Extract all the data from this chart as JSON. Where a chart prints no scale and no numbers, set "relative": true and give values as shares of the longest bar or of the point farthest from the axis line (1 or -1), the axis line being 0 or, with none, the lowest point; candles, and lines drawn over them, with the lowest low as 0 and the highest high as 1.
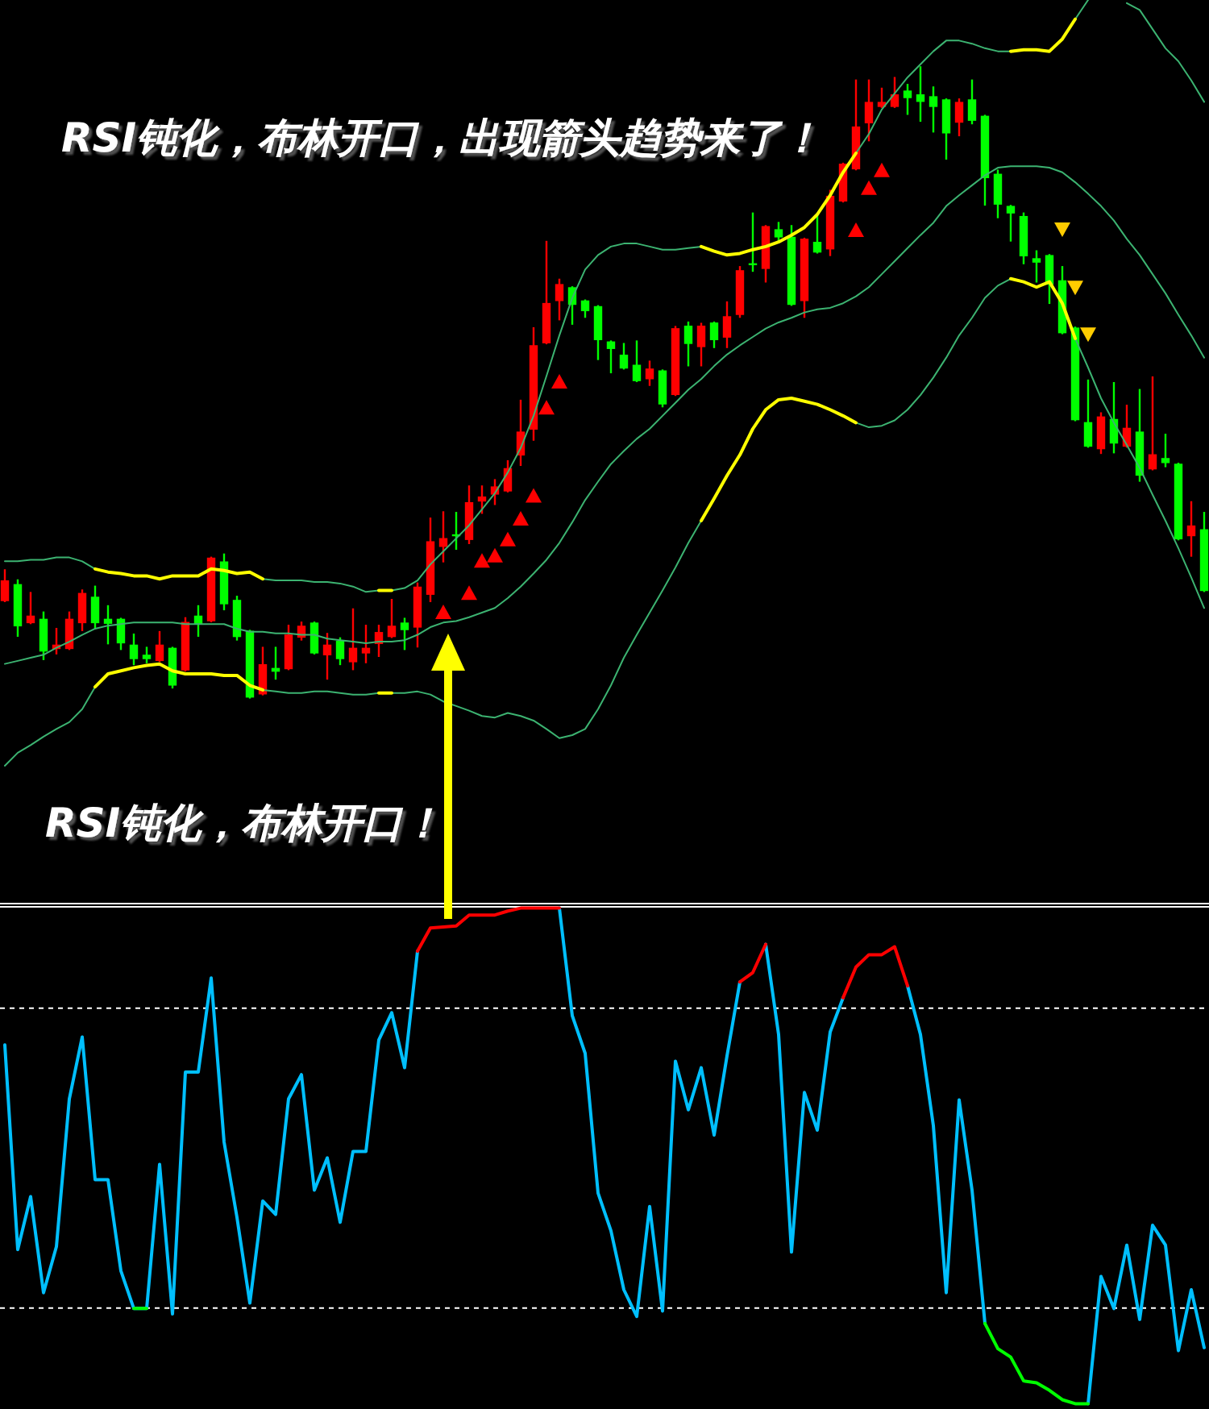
{
  "chart_data": [
    {
      "type": "candlestick",
      "relative": true,
      "categories": [
        null,
        null,
        null,
        null,
        null,
        null,
        null,
        null,
        null,
        null,
        null,
        null,
        null,
        null,
        null,
        null,
        null,
        null,
        null,
        null,
        null,
        null,
        null,
        null,
        null,
        null,
        null,
        null,
        null,
        null,
        null,
        null,
        null,
        null,
        null,
        null,
        null,
        null,
        null,
        null,
        null,
        null,
        null,
        null,
        null,
        null,
        null,
        null,
        null,
        null,
        null,
        null,
        null,
        null,
        null,
        null,
        null,
        null,
        null,
        null,
        null,
        null,
        null,
        null,
        null,
        null,
        null,
        null,
        null,
        null,
        null,
        null,
        null,
        null,
        null,
        null,
        null,
        null,
        null,
        null,
        null,
        null,
        null,
        null,
        null,
        null,
        null,
        null,
        null,
        null,
        null,
        null,
        null,
        null
      ],
      "ohlc": [
        [
          0.153,
          0.202,
          0.153,
          0.186
        ],
        [
          0.18,
          0.186,
          0.098,
          0.113
        ],
        [
          0.118,
          0.166,
          0.118,
          0.13
        ],
        [
          0.125,
          0.135,
          0.061,
          0.073
        ],
        [
          0.077,
          0.109,
          0.07,
          0.084
        ],
        [
          0.077,
          0.135,
          0.077,
          0.125
        ],
        [
          0.118,
          0.17,
          0.107,
          0.166
        ],
        [
          0.16,
          0.176,
          0.111,
          0.118
        ],
        [
          0.125,
          0.145,
          0.086,
          0.117
        ],
        [
          0.125,
          0.125,
          0.077,
          0.086
        ],
        [
          0.084,
          0.1,
          0.053,
          0.061
        ],
        [
          0.068,
          0.079,
          0.056,
          0.061
        ],
        [
          0.058,
          0.104,
          0.058,
          0.084
        ],
        [
          0.079,
          0.079,
          0.016,
          0.019
        ],
        [
          0.043,
          0.126,
          0.043,
          0.12
        ],
        [
          0.13,
          0.145,
          0.098,
          0.117
        ],
        [
          0.121,
          0.222,
          0.121,
          0.222
        ],
        [
          0.216,
          0.227,
          0.14,
          0.148
        ],
        [
          0.155,
          0.16,
          0.092,
          0.096
        ],
        [
          0.106,
          0.106,
          0,
          0
        ],
        [
          0.005,
          0.079,
          0.005,
          0.053
        ],
        [
          0.047,
          0.079,
          0.03,
          0.041
        ],
        [
          0.045,
          0.114,
          0.045,
          0.1
        ],
        [
          0.095,
          0.119,
          0.092,
          0.114
        ],
        [
          0.119,
          0.119,
          0.07,
          0.07
        ],
        [
          0.067,
          0.101,
          0.03,
          0.084
        ],
        [
          0.09,
          0.094,
          0.053,
          0.061
        ],
        [
          0.056,
          0.14,
          0.045,
          0.079
        ],
        [
          0.07,
          0.114,
          0.056,
          0.079
        ],
        [
          0.085,
          0.114,
          0.066,
          0.104
        ],
        [
          0.096,
          0.155,
          0.096,
          0.114
        ],
        [
          0.119,
          0.125,
          0.077,
          0.107
        ],
        [
          0.111,
          0.181,
          0.081,
          0.176
        ],
        [
          0.163,
          0.284,
          0.153,
          0.248
        ],
        [
          0.239,
          0.294,
          0.216,
          0.253
        ],
        [
          0.259,
          0.293,
          0.236,
          0.256
        ],
        [
          0.25,
          0.335,
          0.245,
          0.31
        ],
        [
          0.311,
          0.335,
          0.293,
          0.319
        ],
        [
          0.322,
          0.345,
          0.307,
          0.335
        ],
        [
          0.327,
          0.375,
          0.327,
          0.364
        ],
        [
          0.384,
          0.471,
          0.369,
          0.422
        ],
        [
          0.425,
          0.586,
          0.409,
          0.559
        ],
        [
          0.562,
          0.723,
          0.562,
          0.626
        ],
        [
          0.629,
          0.663,
          0.6,
          0.656
        ],
        [
          0.651,
          0.651,
          0.593,
          0.623
        ],
        [
          0.63,
          0.63,
          0.604,
          0.613
        ],
        [
          0.621,
          0.621,
          0.537,
          0.567
        ],
        [
          0.565,
          0.565,
          0.516,
          0.553
        ],
        [
          0.544,
          0.561,
          0.522,
          0.522
        ],
        [
          0.528,
          0.565,
          0.502,
          0.502
        ],
        [
          0.505,
          0.533,
          0.496,
          0.522
        ],
        [
          0.519,
          0.519,
          0.462,
          0.465
        ],
        [
          0.48,
          0.588,
          0.48,
          0.586
        ],
        [
          0.59,
          0.595,
          0.527,
          0.561
        ],
        [
          0.556,
          0.593,
          0.527,
          0.59
        ],
        [
          0.595,
          0.595,
          0.556,
          0.567
        ],
        [
          0.571,
          0.627,
          0.556,
          0.605
        ],
        [
          0.607,
          0.683,
          0.604,
          0.678
        ],
        [
          0.689,
          0.768,
          0.677,
          0.686
        ],
        [
          0.68,
          0.748,
          0.66,
          0.748
        ],
        [
          0.743,
          0.753,
          0.723,
          0.73
        ],
        [
          0.731,
          0.748,
          0.623,
          0.623
        ],
        [
          0.629,
          0.728,
          0.604,
          0.728
        ],
        [
          0.723,
          0.765,
          0.706,
          0.706
        ],
        [
          0.711,
          0.804,
          0.702,
          0.796
        ],
        [
          0.787,
          0.847,
          0.787,
          0.847
        ],
        [
          0.838,
          0.979,
          0.838,
          0.906
        ],
        [
          0.911,
          0.979,
          0.884,
          0.945
        ],
        [
          0.937,
          0.966,
          0.937,
          0.945
        ],
        [
          0.937,
          0.983,
          0.937,
          0.957
        ],
        [
          0.963,
          0.972,
          0.926,
          0.951
        ],
        [
          0.957,
          1,
          0.915,
          0.945
        ],
        [
          0.954,
          0.968,
          0.898,
          0.937
        ],
        [
          0.949,
          0.949,
          0.855,
          0.895
        ],
        [
          0.912,
          0.949,
          0.892,
          0.945
        ],
        [
          0.949,
          0.979,
          0.911,
          0.915
        ],
        [
          0.923,
          0.923,
          0.782,
          0.824
        ],
        [
          0.831,
          0.836,
          0.762,
          0.782
        ],
        [
          0.78,
          0.78,
          0.725,
          0.768
        ],
        [
          0.764,
          0.768,
          0.689,
          0.7
        ],
        [
          0.697,
          0.708,
          0.66,
          0.69
        ],
        [
          0.702,
          0.702,
          0.626,
          0.655
        ],
        [
          0.662,
          0.683,
          0.578,
          0.578
        ],
        [
          0.587,
          0.587,
          0.44,
          0.44
        ],
        [
          0.437,
          0.503,
          0.398,
          0.398
        ],
        [
          0.394,
          0.451,
          0.388,
          0.446
        ],
        [
          0.442,
          0.499,
          0.389,
          0.403
        ],
        [
          0.398,
          0.463,
          0.398,
          0.428
        ],
        [
          0.422,
          0.488,
          0.344,
          0.352
        ],
        [
          0.362,
          0.508,
          0.362,
          0.386
        ],
        [
          0.38,
          0.417,
          0.367,
          0.372
        ],
        [
          0.371,
          0.371,
          0.251,
          0.251
        ],
        [
          0.256,
          0.31,
          0.225,
          0.273
        ],
        [
          0.267,
          0.293,
          0.169,
          0.169
        ]
      ],
      "colors": [
        "#ff0000",
        "#00ff00",
        "#ff0000",
        "#00ff00",
        "#ff0000",
        "#ff0000",
        "#ff0000",
        "#00ff00",
        "#00ff00",
        "#00ff00",
        "#00ff00",
        "#00ff00",
        "#ff0000",
        "#00ff00",
        "#ff0000",
        "#00ff00",
        "#ff0000",
        "#00ff00",
        "#00ff00",
        "#00ff00",
        "#ff0000",
        "#00ff00",
        "#ff0000",
        "#ff0000",
        "#00ff00",
        "#ff0000",
        "#00ff00",
        "#ff0000",
        "#ff0000",
        "#ff0000",
        "#ff0000",
        "#00ff00",
        "#ff0000",
        "#ff0000",
        "#ff0000",
        "#00ff00",
        "#ff0000",
        "#ff0000",
        "#ff0000",
        "#ff0000",
        "#ff0000",
        "#ff0000",
        "#ff0000",
        "#ff0000",
        "#00ff00",
        "#00ff00",
        "#00ff00",
        "#00ff00",
        "#00ff00",
        "#00ff00",
        "#ff0000",
        "#00ff00",
        "#ff0000",
        "#00ff00",
        "#ff0000",
        "#00ff00",
        "#ff0000",
        "#ff0000",
        "#00ff00",
        "#ff0000",
        "#00ff00",
        "#00ff00",
        "#ff0000",
        "#00ff00",
        "#ff0000",
        "#ff0000",
        "#ff0000",
        "#ff0000",
        "#ff0000",
        "#ff0000",
        "#00ff00",
        "#00ff00",
        "#00ff00",
        "#00ff00",
        "#ff0000",
        "#00ff00",
        "#00ff00",
        "#00ff00",
        "#00ff00",
        "#00ff00",
        "#00ff00",
        "#00ff00",
        "#00ff00",
        "#00ff00",
        "#00ff00",
        "#ff0000",
        "#00ff00",
        "#ff0000",
        "#00ff00",
        "#ff0000",
        "#00ff00",
        "#00ff00",
        "#ff0000",
        "#00ff00"
      ],
      "annotations": [
        "RSI钝化，布林开口，出现箭头趋势来了！",
        "RSI钝化，布林开口！"
      ]
    },
    {
      "type": "line",
      "relative": true,
      "categories": [
        null,
        null,
        null,
        null,
        null,
        null,
        null,
        null,
        null,
        null,
        null,
        null,
        null,
        null,
        null,
        null,
        null,
        null,
        null,
        null,
        null,
        null,
        null,
        null,
        null,
        null,
        null,
        null,
        null,
        null,
        null,
        null,
        null,
        null,
        null,
        null,
        null,
        null,
        null,
        null,
        null,
        null,
        null,
        null,
        null,
        null,
        null,
        null,
        null,
        null,
        null,
        null,
        null,
        null,
        null,
        null,
        null,
        null,
        null,
        null,
        null,
        null,
        null,
        null,
        null,
        null,
        null,
        null,
        null,
        null,
        null,
        null,
        null,
        null,
        null,
        null,
        null,
        null,
        null,
        null,
        null,
        null,
        null,
        null,
        null,
        null,
        null,
        null,
        null,
        null,
        null,
        null,
        null,
        null
      ],
      "series": [
        {
          "type": "line",
          "color": "#3cb371",
          "values": [
            0.267,
            0.267,
            0.269,
            0.269,
            0.272,
            0.272,
            0.267,
            0.257,
            null,
            null,
            null,
            null,
            null,
            null,
            null,
            null,
            null,
            null,
            null,
            null,
            0.244,
            0.242,
            0.242,
            0.242,
            0.24,
            0.24,
            0.238,
            0.234,
            0.227,
            0.229,
            0.229,
            0.232,
            0.242,
            0.263,
            0.28,
            0.297,
            0.314,
            0.335,
            0.356,
            0.383,
            0.415,
            0.457,
            0.509,
            0.562,
            0.611,
            0.648,
            0.667,
            0.678,
            0.682,
            0.682,
            0.678,
            0.674,
            0.674,
            0.676,
            0.678,
            null,
            null,
            null,
            null,
            null,
            null,
            null,
            null,
            null,
            null,
            null,
            0.8,
            0.825,
            0.857,
            0.878,
            0.899,
            0.916,
            0.933,
            0.947,
            0.947,
            0.943,
            0.937,
            0.933,
            0.933,
            null,
            null,
            null,
            null,
            0.975,
            1,
            null,
            null,
            0.996,
            0.987,
            0.962,
            0.937,
            0.92,
            0.895,
            0.867
          ]
        },
        {
          "type": "line",
          "color": "#ffff00",
          "values": [
            null,
            null,
            null,
            null,
            null,
            null,
            null,
            0.257,
            0.253,
            0.251,
            0.248,
            0.248,
            0.244,
            0.248,
            0.248,
            0.248,
            0.257,
            0.255,
            0.251,
            0.253,
            0.244,
            null,
            null,
            null,
            null,
            null,
            null,
            null,
            null,
            0.229,
            0.229,
            null,
            null,
            null,
            null,
            null,
            null,
            null,
            null,
            null,
            null,
            null,
            null,
            null,
            null,
            null,
            null,
            null,
            null,
            null,
            null,
            null,
            null,
            null,
            0.678,
            0.672,
            0.667,
            0.669,
            0.674,
            0.678,
            0.684,
            0.693,
            0.703,
            0.72,
            0.745,
            0.775,
            0.8,
            null,
            null,
            null,
            null,
            null,
            null,
            null,
            null,
            null,
            null,
            null,
            0.933,
            0.935,
            0.935,
            0.933,
            0.949,
            0.975,
            null,
            null,
            null,
            null,
            null,
            null,
            null,
            null,
            null,
            null
          ]
        },
        {
          "type": "line",
          "color": "#3cb371",
          "values": [
            0.133,
            0.137,
            0.141,
            0.145,
            0.154,
            0.162,
            0.171,
            0.179,
            0.183,
            0.185,
            0.187,
            0.187,
            0.187,
            0.187,
            0.185,
            0.185,
            0.185,
            0.185,
            0.179,
            0.175,
            0.175,
            0.173,
            0.173,
            0.171,
            0.171,
            0.166,
            0.164,
            0.162,
            0.16,
            0.162,
            0.162,
            0.164,
            0.171,
            0.181,
            0.187,
            0.189,
            0.194,
            0.2,
            0.206,
            0.219,
            0.234,
            0.251,
            0.269,
            0.291,
            0.318,
            0.347,
            0.371,
            0.394,
            0.411,
            0.427,
            0.44,
            0.457,
            0.474,
            0.491,
            0.505,
            0.522,
            0.537,
            0.549,
            0.56,
            0.571,
            0.579,
            0.585,
            0.592,
            0.596,
            0.598,
            0.604,
            0.613,
            0.625,
            0.642,
            0.659,
            0.676,
            0.693,
            0.709,
            0.731,
            0.745,
            0.758,
            0.771,
            0.781,
            0.783,
            0.783,
            0.783,
            0.781,
            0.775,
            0.762,
            0.747,
            0.731,
            0.712,
            0.688,
            0.667,
            0.642,
            0.617,
            0.589,
            0.562,
            0.533
          ]
        },
        {
          "type": "line",
          "color": "#3cb371",
          "values": [
            0,
            0.017,
            0.027,
            0.038,
            0.048,
            0.057,
            0.074,
            0.103,
            null,
            null,
            null,
            null,
            null,
            null,
            null,
            null,
            null,
            null,
            null,
            null,
            0.099,
            0.097,
            0.095,
            0.095,
            0.097,
            0.097,
            0.095,
            0.093,
            0.093,
            0.095,
            0.095,
            0.095,
            0.097,
            0.093,
            0.084,
            0.078,
            0.072,
            0.065,
            0.063,
            0.069,
            0.065,
            0.059,
            0.048,
            0.036,
            0.04,
            0.048,
            0.074,
            0.105,
            0.141,
            0.171,
            0.2,
            0.229,
            0.259,
            0.291,
            0.32,
            null,
            null,
            null,
            null,
            null,
            null,
            null,
            null,
            null,
            null,
            null,
            0.448,
            0.442,
            0.444,
            0.451,
            0.465,
            0.484,
            0.507,
            0.533,
            0.562,
            0.585,
            0.611,
            0.627,
            0.636,
            null,
            null,
            null,
            null,
            0.558,
            0.52,
            0.48,
            0.448,
            0.419,
            0.389,
            0.354,
            0.32,
            0.284,
            0.246,
            0.206
          ]
        },
        {
          "type": "line",
          "color": "#ffff00",
          "values": [
            null,
            null,
            null,
            null,
            null,
            null,
            null,
            0.103,
            0.12,
            0.124,
            0.128,
            0.131,
            0.133,
            0.124,
            0.12,
            0.12,
            0.12,
            0.118,
            0.118,
            0.105,
            0.099,
            null,
            null,
            null,
            null,
            null,
            null,
            null,
            null,
            0.095,
            0.095,
            null,
            null,
            null,
            null,
            null,
            null,
            null,
            null,
            null,
            null,
            null,
            null,
            null,
            null,
            null,
            null,
            null,
            null,
            null,
            null,
            null,
            null,
            null,
            0.32,
            0.349,
            0.379,
            0.406,
            0.44,
            0.465,
            0.478,
            0.48,
            0.476,
            0.472,
            0.465,
            0.457,
            0.448,
            null,
            null,
            null,
            null,
            null,
            null,
            null,
            null,
            null,
            null,
            null,
            0.636,
            0.632,
            0.625,
            0.632,
            0.604,
            0.558,
            null,
            null,
            null,
            null,
            null,
            null,
            null,
            null,
            null,
            null
          ]
        },
        {
          "type": "scatter",
          "marker": "triangle",
          "color": "#ff0000",
          "values": [
            null,
            null,
            null,
            null,
            null,
            null,
            null,
            null,
            null,
            null,
            null,
            null,
            null,
            null,
            null,
            null,
            null,
            null,
            null,
            null,
            null,
            null,
            null,
            null,
            null,
            null,
            null,
            null,
            null,
            null,
            null,
            null,
            null,
            null,
            0.2,
            null,
            0.225,
            0.267,
            0.274,
            0.295,
            0.322,
            0.352,
            0.467,
            0.501,
            null,
            null,
            null,
            null,
            null,
            null,
            null,
            null,
            null,
            null,
            null,
            null,
            null,
            null,
            null,
            null,
            null,
            null,
            null,
            null,
            null,
            null,
            0.699,
            0.754,
            0.777,
            null,
            null,
            null,
            null,
            null,
            null,
            null,
            null,
            null,
            null,
            null,
            null,
            null,
            null,
            null,
            null,
            null,
            null,
            null,
            null,
            null,
            null,
            null,
            null,
            null
          ]
        },
        {
          "type": "scatter",
          "marker": "triangle",
          "color": "#ffcc00",
          "values": [
            null,
            null,
            null,
            null,
            null,
            null,
            null,
            null,
            null,
            null,
            null,
            null,
            null,
            null,
            null,
            null,
            null,
            null,
            null,
            null,
            null,
            null,
            null,
            null,
            null,
            null,
            null,
            null,
            null,
            null,
            null,
            null,
            null,
            null,
            null,
            null,
            null,
            null,
            null,
            null,
            null,
            null,
            null,
            null,
            null,
            null,
            null,
            null,
            null,
            null,
            null,
            null,
            null,
            null,
            null,
            null,
            null,
            null,
            null,
            null,
            null,
            null,
            null,
            null,
            null,
            null,
            null,
            null,
            null,
            null,
            null,
            null,
            null,
            null,
            null,
            null,
            null,
            null,
            null,
            null,
            null,
            null,
            0.701,
            0.625,
            0.564,
            null,
            null,
            null,
            null,
            null,
            null,
            null,
            null,
            null
          ]
        }
      ]
    },
    {
      "type": "line",
      "relative": true,
      "categories": [
        null,
        null,
        null,
        null,
        null,
        null,
        null,
        null,
        null,
        null,
        null,
        null,
        null,
        null,
        null,
        null,
        null,
        null,
        null,
        null,
        null,
        null,
        null,
        null,
        null,
        null,
        null,
        null,
        null,
        null,
        null,
        null,
        null,
        null,
        null,
        null,
        null,
        null,
        null,
        null,
        null,
        null,
        null,
        null,
        null,
        null,
        null,
        null,
        null,
        null,
        null,
        null,
        null,
        null,
        null,
        null,
        null,
        null,
        null,
        null,
        null,
        null,
        null,
        null,
        null,
        null,
        null,
        null,
        null,
        null,
        null,
        null,
        null,
        null,
        null,
        null,
        null,
        null,
        null,
        null,
        null,
        null,
        null,
        null,
        null,
        null,
        null,
        null,
        null,
        null,
        null,
        null,
        null,
        null
      ],
      "series": [
        {
          "color": "#00bfff",
          "values": [
            0.724,
            0.311,
            0.418,
            0.224,
            0.317,
            0.615,
            0.74,
            0.452,
            0.452,
            0.268,
            0.192,
            0.192,
            0.483,
            0.181,
            0.669,
            0.669,
            0.859,
            0.528,
            0.376,
            0.203,
            0.409,
            0.382,
            0.615,
            0.664,
            0.431,
            0.496,
            0.366,
            0.509,
            0.509,
            0.734,
            0.789,
            0.678,
            0.913,
            null,
            null,
            null,
            null,
            null,
            null,
            null,
            null,
            null,
            null,
            1,
            0.783,
            0.707,
            0.425,
            0.349,
            0.23,
            0.176,
            0.398,
            0.187,
            0.691,
            0.593,
            0.678,
            0.542,
            0.702,
            0.851,
            null,
            0.927,
            0.745,
            0.306,
            0.628,
            0.552,
            0.75,
            0.819,
            null,
            null,
            null,
            null,
            0.843,
            0.745,
            0.561,
            0.224,
            0.613,
            0.431,
            0.162,
            null,
            null,
            null,
            null,
            null,
            null,
            null,
            0,
            0.257,
            0.192,
            0.32,
            0.17,
            0.36,
            0.32,
            0.107,
            0.23,
            0.113
          ]
        },
        {
          "color": "#ff0000",
          "values": [
            null,
            null,
            null,
            null,
            null,
            null,
            null,
            null,
            null,
            null,
            null,
            null,
            null,
            null,
            null,
            null,
            null,
            null,
            null,
            null,
            null,
            null,
            null,
            null,
            null,
            null,
            null,
            null,
            null,
            null,
            null,
            null,
            0.913,
            0.96,
            0.962,
            0.964,
            0.986,
            0.986,
            0.986,
            0.994,
            1,
            1,
            1,
            1,
            null,
            null,
            null,
            null,
            null,
            null,
            null,
            null,
            null,
            null,
            null,
            null,
            null,
            0.851,
            0.87,
            0.927,
            null,
            null,
            null,
            null,
            null,
            0.819,
            0.881,
            0.906,
            0.906,
            0.922,
            0.843,
            null,
            null,
            null,
            null,
            null,
            null,
            null,
            null,
            null,
            null,
            null,
            null,
            null,
            null,
            null,
            null,
            null,
            null,
            null,
            null,
            null,
            null,
            null
          ]
        },
        {
          "color": "#00ff00",
          "values": [
            null,
            null,
            null,
            null,
            null,
            null,
            null,
            null,
            null,
            null,
            0.192,
            0.192,
            null,
            null,
            null,
            null,
            null,
            null,
            null,
            null,
            null,
            null,
            null,
            null,
            null,
            null,
            null,
            null,
            null,
            null,
            null,
            null,
            null,
            null,
            null,
            null,
            null,
            null,
            null,
            null,
            null,
            null,
            null,
            null,
            null,
            null,
            null,
            null,
            null,
            null,
            null,
            null,
            null,
            null,
            null,
            null,
            null,
            null,
            null,
            null,
            null,
            null,
            null,
            null,
            null,
            null,
            null,
            null,
            null,
            null,
            null,
            null,
            null,
            null,
            null,
            null,
            0.162,
            0.111,
            0.094,
            0.046,
            0.042,
            0.027,
            0.008,
            0,
            0,
            null,
            null,
            null,
            null,
            null,
            null,
            null,
            null,
            null
          ]
        }
      ],
      "ref_lines": [
        {
          "axis": "y",
          "value": 0.798,
          "color": "#ffffff",
          "line_style": "dashed"
        },
        {
          "axis": "y",
          "value": 0.193,
          "color": "#ffffff",
          "line_style": "dashed"
        }
      ]
    }
  ]
}
